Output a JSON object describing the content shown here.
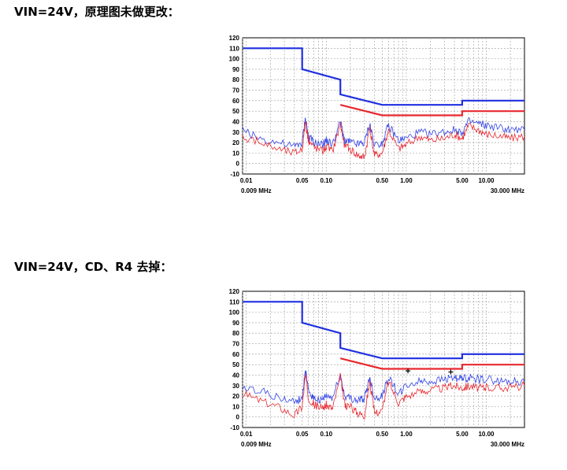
{
  "headings": [
    "VIN=24V，原理图未做更改：",
    "VIN=24V，CD、R4 去掉："
  ],
  "chart_data": [
    {
      "type": "line",
      "title": "",
      "xscale": "log",
      "xlim": [
        0.009,
        30.0
      ],
      "ylim": [
        -10,
        120
      ],
      "yticks": [
        "120",
        "110",
        "100",
        "90",
        "80",
        "70",
        "60",
        "50",
        "40",
        "30",
        "20",
        "10",
        "0",
        "-10"
      ],
      "xtick_labels": [
        {
          "label": "0.01",
          "x": 0.01
        },
        {
          "label": "0.05",
          "x": 0.05
        },
        {
          "label": "0.10",
          "x": 0.1
        },
        {
          "label": "0.50",
          "x": 0.5
        },
        {
          "label": "1.00",
          "x": 1.0
        },
        {
          "label": "5.00",
          "x": 5.0
        },
        {
          "label": "10.00",
          "x": 10.0
        }
      ],
      "xstart_label": "0.009 MHz",
      "xend_label": "30.000 MHz",
      "grid": true,
      "series": [
        {
          "color": "#1f2fe0",
          "kind": "limit",
          "x": [
            0.009,
            0.05,
            0.05,
            0.15,
            0.15,
            0.5,
            5,
            5,
            30
          ],
          "y": [
            110,
            110,
            90,
            80,
            66,
            56,
            56,
            60,
            60
          ]
        },
        {
          "color": "#e8282f",
          "kind": "limit",
          "x": [
            0.15,
            0.5,
            5,
            5,
            30
          ],
          "y": [
            56,
            46,
            46,
            50,
            50
          ]
        },
        {
          "color": "#3344e6",
          "kind": "trace",
          "x": [
            0.009,
            0.015,
            0.025,
            0.04,
            0.05,
            0.055,
            0.06,
            0.07,
            0.09,
            0.1,
            0.12,
            0.15,
            0.17,
            0.2,
            0.25,
            0.3,
            0.35,
            0.4,
            0.5,
            0.6,
            0.8,
            1.0,
            1.5,
            2.0,
            3.0,
            4.0,
            5.0,
            6.0,
            8.0,
            10.0,
            15.0,
            20.0,
            30.0
          ],
          "y": [
            32,
            24,
            20,
            16,
            20,
            44,
            26,
            20,
            18,
            22,
            18,
            40,
            22,
            20,
            18,
            20,
            38,
            18,
            20,
            36,
            22,
            24,
            30,
            28,
            30,
            32,
            30,
            40,
            38,
            36,
            34,
            32,
            32
          ]
        },
        {
          "color": "#e8282f",
          "kind": "trace",
          "x": [
            0.009,
            0.015,
            0.025,
            0.04,
            0.05,
            0.055,
            0.06,
            0.07,
            0.09,
            0.1,
            0.12,
            0.15,
            0.17,
            0.2,
            0.25,
            0.3,
            0.35,
            0.4,
            0.5,
            0.6,
            0.8,
            1.0,
            1.5,
            2.0,
            3.0,
            4.0,
            5.0,
            6.0,
            8.0,
            10.0,
            15.0,
            20.0,
            30.0
          ],
          "y": [
            26,
            20,
            14,
            10,
            14,
            40,
            22,
            16,
            12,
            16,
            12,
            38,
            16,
            14,
            8,
            6,
            34,
            8,
            10,
            32,
            14,
            18,
            26,
            22,
            24,
            28,
            24,
            36,
            32,
            28,
            26,
            24,
            26
          ]
        }
      ]
    },
    {
      "type": "line",
      "title": "",
      "xscale": "log",
      "xlim": [
        0.009,
        30.0
      ],
      "ylim": [
        -10,
        120
      ],
      "yticks": [
        "120",
        "110",
        "100",
        "90",
        "80",
        "70",
        "60",
        "50",
        "40",
        "30",
        "20",
        "10",
        "0",
        "-10"
      ],
      "xtick_labels": [
        {
          "label": "0.01",
          "x": 0.01
        },
        {
          "label": "0.05",
          "x": 0.05
        },
        {
          "label": "0.10",
          "x": 0.1
        },
        {
          "label": "0.50",
          "x": 0.5
        },
        {
          "label": "1.00",
          "x": 1.0
        },
        {
          "label": "5.00",
          "x": 5.0
        },
        {
          "label": "10.00",
          "x": 10.0
        }
      ],
      "xstart_label": "0.009 MHz",
      "xend_label": "30.000 MHz",
      "grid": true,
      "markers": [
        {
          "x": 1.05,
          "y": 44
        },
        {
          "x": 3.6,
          "y": 43
        }
      ],
      "series": [
        {
          "color": "#1f2fe0",
          "kind": "limit",
          "x": [
            0.009,
            0.05,
            0.05,
            0.15,
            0.15,
            0.5,
            5,
            5,
            30
          ],
          "y": [
            110,
            110,
            90,
            80,
            66,
            56,
            56,
            60,
            60
          ]
        },
        {
          "color": "#e8282f",
          "kind": "limit",
          "x": [
            0.15,
            0.5,
            5,
            5,
            30
          ],
          "y": [
            56,
            46,
            46,
            50,
            50
          ]
        },
        {
          "color": "#3344e6",
          "kind": "trace",
          "x": [
            0.009,
            0.015,
            0.025,
            0.04,
            0.05,
            0.055,
            0.06,
            0.07,
            0.09,
            0.1,
            0.12,
            0.15,
            0.17,
            0.2,
            0.25,
            0.3,
            0.35,
            0.4,
            0.5,
            0.6,
            0.8,
            1.0,
            1.5,
            2.0,
            3.0,
            4.0,
            5.0,
            6.0,
            8.0,
            10.0,
            15.0,
            20.0,
            30.0
          ],
          "y": [
            28,
            26,
            18,
            14,
            18,
            44,
            24,
            18,
            16,
            20,
            18,
            40,
            20,
            18,
            16,
            18,
            38,
            18,
            20,
            38,
            22,
            30,
            34,
            34,
            36,
            38,
            36,
            38,
            36,
            36,
            34,
            34,
            34
          ]
        },
        {
          "color": "#e8282f",
          "kind": "trace",
          "x": [
            0.009,
            0.015,
            0.025,
            0.04,
            0.05,
            0.055,
            0.06,
            0.07,
            0.09,
            0.1,
            0.12,
            0.15,
            0.17,
            0.2,
            0.25,
            0.3,
            0.35,
            0.4,
            0.5,
            0.6,
            0.8,
            1.0,
            1.5,
            2.0,
            3.0,
            4.0,
            5.0,
            6.0,
            8.0,
            10.0,
            15.0,
            20.0,
            30.0
          ],
          "y": [
            22,
            16,
            10,
            2,
            10,
            40,
            18,
            12,
            8,
            12,
            8,
            38,
            12,
            10,
            4,
            2,
            34,
            4,
            6,
            34,
            14,
            20,
            24,
            26,
            28,
            30,
            28,
            30,
            28,
            28,
            28,
            28,
            30
          ]
        }
      ]
    }
  ]
}
